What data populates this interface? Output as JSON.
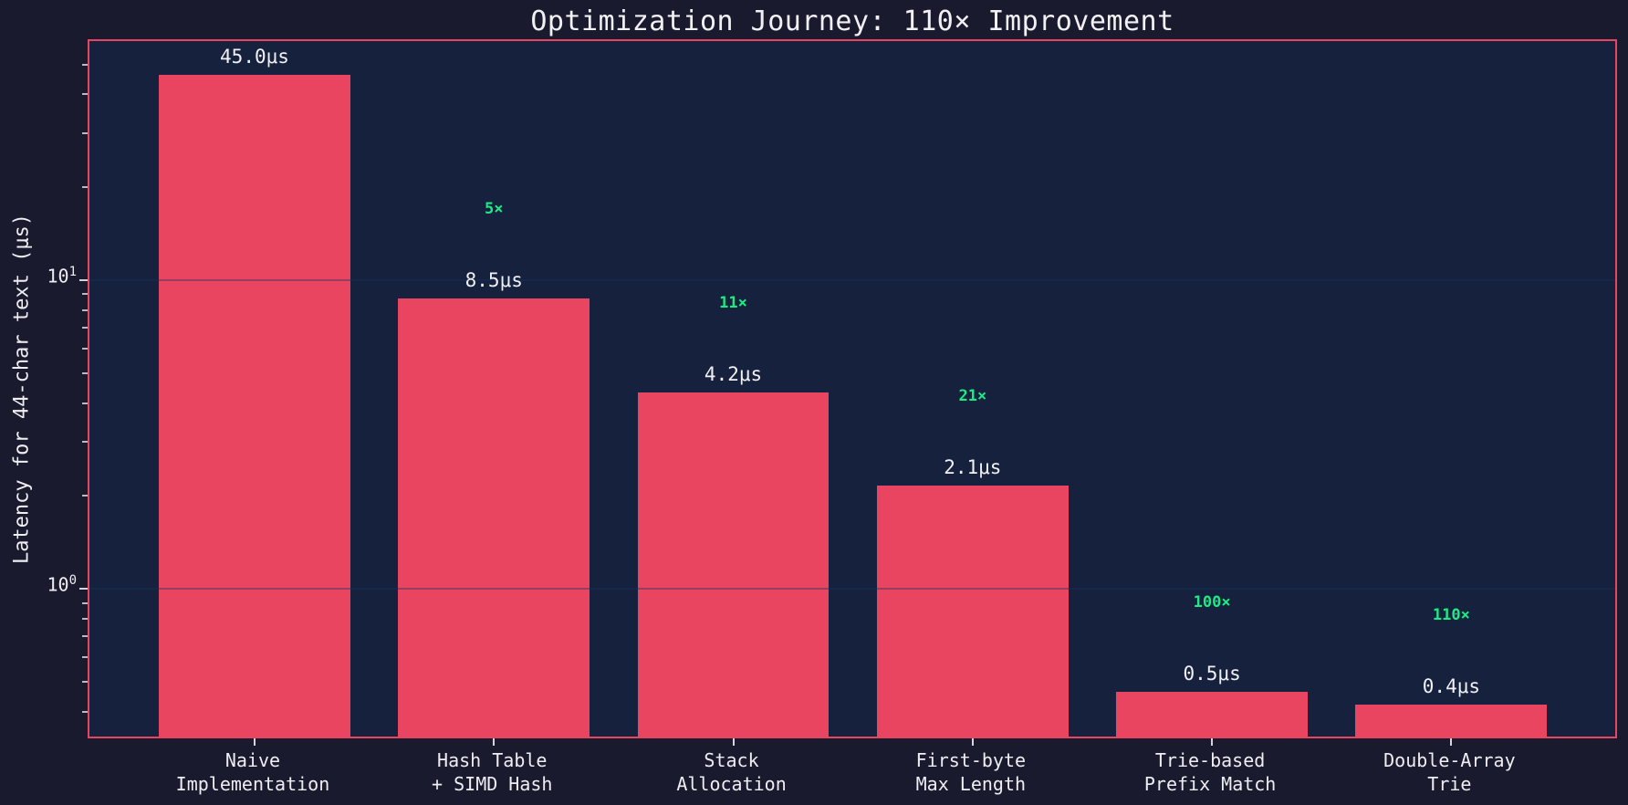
{
  "title": "Optimization Journey: 110× Improvement",
  "colors": {
    "figure_background": "#1a1a2e",
    "axes_background": "#16213e",
    "bar_and_spine": "#e94560",
    "speedup_green": "#1ee985",
    "text": "#f1f1f4",
    "grid": "rgba(15,52,96,0.38)"
  },
  "chart_data": {
    "type": "bar",
    "title": "Optimization Journey: 110× Improvement",
    "xlabel": "",
    "ylabel": "Latency for 44-char text (μs)",
    "yscale": "log",
    "ylim": [
      0.3229,
      59.56
    ],
    "xlim": [
      -0.69,
      5.7
    ],
    "bar_width_units": 0.8,
    "grid": "major-horizontal, drawn over bars",
    "legend": "none",
    "categories": [
      [
        "Naive",
        "Implementation"
      ],
      [
        "Hash Table",
        "+ SIMD Hash"
      ],
      [
        "Stack",
        "Allocation"
      ],
      [
        "First-byte",
        "Max Length"
      ],
      [
        "Trie-based",
        "Prefix Match"
      ],
      [
        "Double-Array",
        "Trie"
      ]
    ],
    "values": [
      45.0,
      8.5,
      4.2,
      2.1,
      0.45,
      0.41
    ],
    "value_labels": [
      "45.0μs",
      "8.5μs",
      "4.2μs",
      "2.1μs",
      "0.5μs",
      "0.4μs"
    ],
    "speedup_labels": [
      "",
      "5×",
      "11×",
      "21×",
      "100×",
      "110×"
    ],
    "y_major_ticks": [
      {
        "value": 1,
        "base": "10",
        "exp": "0"
      },
      {
        "value": 10,
        "base": "10",
        "exp": "1"
      }
    ],
    "y_minor_ticks": [
      0.4,
      0.5,
      0.6,
      0.7,
      0.8,
      0.9,
      2,
      3,
      4,
      5,
      6,
      7,
      8,
      9,
      20,
      30,
      40,
      50
    ]
  }
}
